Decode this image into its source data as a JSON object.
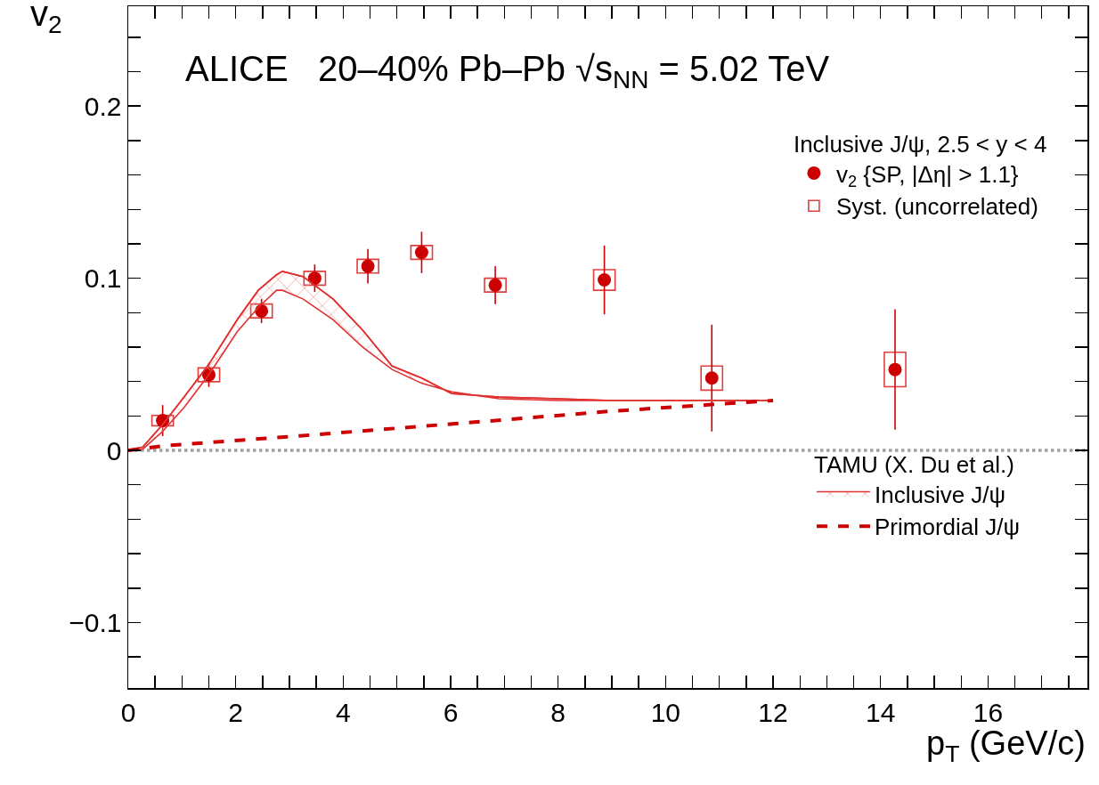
{
  "chart_data": {
    "type": "scatter",
    "title": "ALICE   20–40% Pb–Pb √s$_{NN}$ = 5.02 TeV",
    "xlabel": "p$_{T}$ (GeV/c)",
    "ylabel": "v$_{2}$",
    "legend_title": "Inclusive J/ψ, 2.5 < y < 4",
    "annotations": [
      "TAMU (X. Du et al.)"
    ],
    "x": [
      0.64,
      1.5,
      2.48,
      3.47,
      4.46,
      5.46,
      6.83,
      8.86,
      10.86,
      14.27
    ],
    "xlim": [
      0,
      17.85
    ],
    "ylim": [
      -0.138,
      0.258
    ],
    "xticks": [
      0,
      {
        "value": 0.5,
        "label": null
      },
      {
        "value": 1,
        "label": null
      },
      {
        "value": 1.5,
        "label": null
      },
      2,
      {
        "value": 2.5,
        "label": null
      },
      {
        "value": 3,
        "label": null
      },
      {
        "value": 3.5,
        "label": null
      },
      4,
      {
        "value": 4.5,
        "label": null
      },
      {
        "value": 5,
        "label": null
      },
      {
        "value": 5.5,
        "label": null
      },
      6,
      {
        "value": 6.5,
        "label": null
      },
      {
        "value": 7,
        "label": null
      },
      {
        "value": 7.5,
        "label": null
      },
      8,
      {
        "value": 8.5,
        "label": null
      },
      {
        "value": 9,
        "label": null
      },
      {
        "value": 9.5,
        "label": null
      },
      10,
      {
        "value": 10.5,
        "label": null
      },
      {
        "value": 11,
        "label": null
      },
      {
        "value": 11.5,
        "label": null
      },
      12,
      {
        "value": 12.5,
        "label": null
      },
      {
        "value": 13,
        "label": null
      },
      {
        "value": 13.5,
        "label": null
      },
      14,
      {
        "value": 14.5,
        "label": null
      },
      {
        "value": 15,
        "label": null
      },
      {
        "value": 15.5,
        "label": null
      },
      16,
      {
        "value": 16.5,
        "label": null
      },
      {
        "value": 17,
        "label": null
      },
      {
        "value": 17.5,
        "label": null
      }
    ],
    "yticks": [
      {
        "value": -0.12,
        "label": null
      },
      {
        "value": -0.1,
        "label": "−0.1"
      },
      {
        "value": -0.08,
        "label": null
      },
      {
        "value": -0.06,
        "label": null
      },
      {
        "value": -0.04,
        "label": null
      },
      {
        "value": -0.02,
        "label": null
      },
      0,
      {
        "value": 0.02,
        "label": null
      },
      {
        "value": 0.04,
        "label": null
      },
      {
        "value": 0.06,
        "label": null
      },
      {
        "value": 0.08,
        "label": null
      },
      0.1,
      {
        "value": 0.12,
        "label": null
      },
      {
        "value": 0.14,
        "label": null
      },
      {
        "value": 0.16,
        "label": null
      },
      {
        "value": 0.18,
        "label": null
      },
      0.2,
      {
        "value": 0.22,
        "label": null
      },
      {
        "value": 0.24,
        "label": null
      }
    ],
    "ref_lines": [
      {
        "axis": "y",
        "value": 0,
        "color": "#a0a0a0",
        "line_style": "dotted"
      }
    ],
    "legend": "right",
    "series": [
      {
        "name": "v$_{2}$ {SP, |Δη| > 1.1}",
        "marker": "circle",
        "color": "#cc0000",
        "values": [
          0.0173,
          0.0439,
          0.081,
          0.1,
          0.107,
          0.115,
          0.096,
          0.099,
          0.042,
          0.047
        ],
        "errors": [
          0.009,
          0.007,
          0.007,
          0.008,
          0.01,
          0.012,
          0.011,
          0.02,
          0.031,
          0.035
        ]
      },
      {
        "name": "Syst. (uncorrelated)",
        "type": "bar",
        "color": "#e04040",
        "base": [
          0.0143,
          0.0399,
          0.077,
          0.096,
          0.103,
          0.111,
          0.092,
          0.093,
          0.035,
          0.037
        ],
        "values": [
          0.006,
          0.008,
          0.008,
          0.008,
          0.008,
          0.008,
          0.008,
          0.012,
          0.014,
          0.02
        ]
      },
      {
        "name": "Inclusive J/ψ",
        "type": "line",
        "color": "#e03030",
        "x": [
          0,
          0.27,
          0.64,
          1.04,
          1.5,
          2.03,
          2.42,
          2.76,
          2.87,
          3.25,
          3.81,
          4.36,
          4.91,
          5.46,
          6.02,
          6.9,
          8,
          9,
          10,
          11,
          12
        ],
        "values": [
          0,
          0.002,
          0.015,
          0.031,
          0.05,
          0.076,
          0.093,
          0.102,
          0.104,
          0.101,
          0.088,
          0.07,
          0.049,
          0.042,
          0.033,
          0.031,
          0.03,
          0.029,
          0.029,
          0.029,
          0.029
        ],
        "upper": [
          0,
          0.002,
          0.015,
          0.031,
          0.05,
          0.076,
          0.093,
          0.102,
          0.104,
          0.101,
          0.088,
          0.07,
          0.049,
          0.042,
          0.033,
          0.031,
          0.03,
          0.029,
          0.029,
          0.029,
          0.029
        ],
        "lower": [
          0,
          0.0007,
          0.011,
          0.025,
          0.044,
          0.069,
          0.083,
          0.093,
          0.093,
          0.088,
          0.076,
          0.06,
          0.047,
          0.039,
          0.034,
          0.03,
          0.029,
          0.029,
          0.029,
          0.029,
          0.029
        ]
      },
      {
        "name": "Primordial J/ψ",
        "type": "line",
        "color": "#cc0000",
        "line_style": "dashed",
        "x": [
          0,
          0.64,
          3.25,
          6.24,
          9,
          12
        ],
        "values": [
          0,
          0.0026,
          0.0086,
          0.0159,
          0.0228,
          0.029
        ]
      }
    ]
  }
}
